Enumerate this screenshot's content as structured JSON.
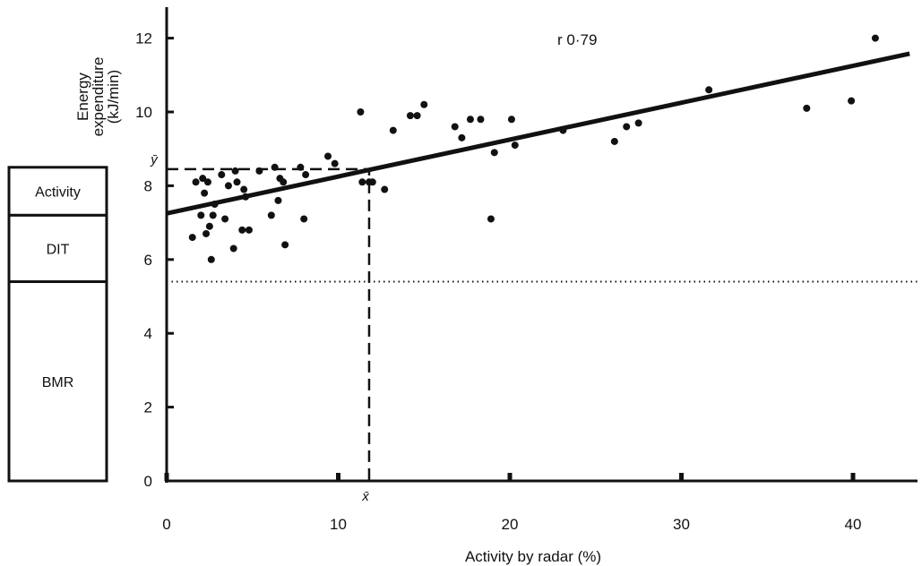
{
  "chart_data": {
    "type": "scatter",
    "xlabel": "Activity by radar (%)",
    "ylabel_lines": [
      "Energy",
      "expenditure",
      "(kJ/min)"
    ],
    "xlim": [
      0,
      43
    ],
    "ylim": [
      0,
      12.8
    ],
    "x_ticks": [
      0,
      10,
      20,
      30,
      40
    ],
    "y_ticks": [
      0,
      2,
      4,
      6,
      8,
      10,
      12
    ],
    "annotation": "r 0·79",
    "mean_labels": {
      "x": "x̄",
      "y": "ȳ"
    },
    "mean_point": {
      "x": 11.8,
      "y": 8.45
    },
    "regression_line": {
      "intercept": 7.25,
      "slope": 0.1
    },
    "reference_line_y": 5.4,
    "grid": false,
    "points": [
      {
        "x": 1.5,
        "y": 6.6
      },
      {
        "x": 1.7,
        "y": 8.1
      },
      {
        "x": 2.0,
        "y": 7.2
      },
      {
        "x": 2.1,
        "y": 8.2
      },
      {
        "x": 2.2,
        "y": 7.8
      },
      {
        "x": 2.3,
        "y": 6.7
      },
      {
        "x": 2.4,
        "y": 8.1
      },
      {
        "x": 2.5,
        "y": 6.9
      },
      {
        "x": 2.6,
        "y": 6.0
      },
      {
        "x": 2.7,
        "y": 7.2
      },
      {
        "x": 2.8,
        "y": 7.5
      },
      {
        "x": 3.2,
        "y": 8.3
      },
      {
        "x": 3.4,
        "y": 7.1
      },
      {
        "x": 3.6,
        "y": 8.0
      },
      {
        "x": 3.9,
        "y": 6.3
      },
      {
        "x": 4.0,
        "y": 8.4
      },
      {
        "x": 4.1,
        "y": 8.1
      },
      {
        "x": 4.4,
        "y": 6.8
      },
      {
        "x": 4.5,
        "y": 7.9
      },
      {
        "x": 4.6,
        "y": 7.7
      },
      {
        "x": 4.8,
        "y": 6.8
      },
      {
        "x": 5.4,
        "y": 8.4
      },
      {
        "x": 6.1,
        "y": 7.2
      },
      {
        "x": 6.3,
        "y": 8.5
      },
      {
        "x": 6.5,
        "y": 7.6
      },
      {
        "x": 6.6,
        "y": 8.2
      },
      {
        "x": 6.8,
        "y": 8.1
      },
      {
        "x": 6.9,
        "y": 6.4
      },
      {
        "x": 7.8,
        "y": 8.5
      },
      {
        "x": 8.0,
        "y": 7.1
      },
      {
        "x": 8.1,
        "y": 8.3
      },
      {
        "x": 9.4,
        "y": 8.8
      },
      {
        "x": 9.8,
        "y": 8.6
      },
      {
        "x": 11.3,
        "y": 10.0
      },
      {
        "x": 11.4,
        "y": 8.1
      },
      {
        "x": 11.8,
        "y": 8.1
      },
      {
        "x": 12.0,
        "y": 8.1
      },
      {
        "x": 12.7,
        "y": 7.9
      },
      {
        "x": 13.2,
        "y": 9.5
      },
      {
        "x": 14.2,
        "y": 9.9
      },
      {
        "x": 14.6,
        "y": 9.9
      },
      {
        "x": 15.0,
        "y": 10.2
      },
      {
        "x": 16.8,
        "y": 9.6
      },
      {
        "x": 17.2,
        "y": 9.3
      },
      {
        "x": 17.7,
        "y": 9.8
      },
      {
        "x": 18.3,
        "y": 9.8
      },
      {
        "x": 18.9,
        "y": 7.1
      },
      {
        "x": 19.1,
        "y": 8.9
      },
      {
        "x": 20.1,
        "y": 9.8
      },
      {
        "x": 20.3,
        "y": 9.1
      },
      {
        "x": 23.1,
        "y": 9.5
      },
      {
        "x": 26.1,
        "y": 9.2
      },
      {
        "x": 26.8,
        "y": 9.6
      },
      {
        "x": 27.5,
        "y": 9.7
      },
      {
        "x": 31.6,
        "y": 10.6
      },
      {
        "x": 37.3,
        "y": 10.1
      },
      {
        "x": 39.9,
        "y": 10.3
      },
      {
        "x": 41.3,
        "y": 12.0
      }
    ]
  },
  "energy_blocks": [
    {
      "label": "Activity",
      "from": 7.2,
      "to": 8.5
    },
    {
      "label": "DIT",
      "from": 5.4,
      "to": 7.2
    },
    {
      "label": "BMR",
      "from": 0,
      "to": 5.4
    }
  ]
}
